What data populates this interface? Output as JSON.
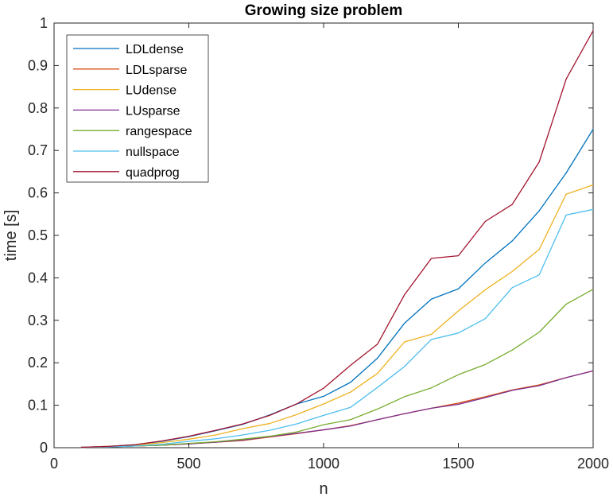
{
  "chart_data": {
    "type": "line",
    "title": "Growing size problem",
    "xlabel": "n",
    "ylabel": "time [s]",
    "xlim": [
      0,
      2000
    ],
    "ylim": [
      0,
      1
    ],
    "xticks": [
      0,
      500,
      1000,
      1500,
      2000
    ],
    "yticks": [
      0,
      0.1,
      0.2,
      0.3,
      0.4,
      0.5,
      0.6,
      0.7,
      0.8,
      0.9,
      1
    ],
    "xtick_labels": [
      "0",
      "500",
      "1000",
      "1500",
      "2000"
    ],
    "ytick_labels": [
      "0",
      "0.1",
      "0.2",
      "0.3",
      "0.4",
      "0.5",
      "0.6",
      "0.7",
      "0.8",
      "0.9",
      "1"
    ],
    "grid": false,
    "legend_position": "top-left",
    "x": [
      100,
      200,
      300,
      400,
      500,
      600,
      700,
      800,
      900,
      1000,
      1100,
      1200,
      1300,
      1400,
      1500,
      1600,
      1700,
      1800,
      1900,
      2000
    ],
    "series": [
      {
        "name": "LDLdense",
        "color": "#0072BD",
        "values": [
          0.001,
          0.003,
          0.007,
          0.015,
          0.026,
          0.04,
          0.055,
          0.077,
          0.103,
          0.121,
          0.154,
          0.211,
          0.293,
          0.35,
          0.374,
          0.435,
          0.487,
          0.558,
          0.647,
          0.75
        ]
      },
      {
        "name": "LDLsparse",
        "color": "#D95319",
        "values": [
          0.001,
          0.002,
          0.004,
          0.006,
          0.009,
          0.013,
          0.017,
          0.025,
          0.033,
          0.042,
          0.052,
          0.066,
          0.08,
          0.093,
          0.105,
          0.12,
          0.136,
          0.148,
          0.165,
          0.181
        ]
      },
      {
        "name": "LUdense",
        "color": "#EDB120",
        "values": [
          0.001,
          0.003,
          0.006,
          0.012,
          0.02,
          0.03,
          0.045,
          0.057,
          0.078,
          0.103,
          0.131,
          0.175,
          0.249,
          0.267,
          0.322,
          0.372,
          0.415,
          0.467,
          0.597,
          0.619
        ]
      },
      {
        "name": "LUsparse",
        "color": "#7E2F8E",
        "values": [
          0.001,
          0.002,
          0.004,
          0.006,
          0.009,
          0.013,
          0.018,
          0.026,
          0.034,
          0.042,
          0.051,
          0.066,
          0.08,
          0.093,
          0.102,
          0.118,
          0.135,
          0.146,
          0.165,
          0.181
        ]
      },
      {
        "name": "rangespace",
        "color": "#77AC30",
        "values": [
          0.001,
          0.002,
          0.004,
          0.006,
          0.01,
          0.014,
          0.02,
          0.027,
          0.037,
          0.054,
          0.066,
          0.091,
          0.12,
          0.141,
          0.172,
          0.196,
          0.23,
          0.272,
          0.338,
          0.373
        ]
      },
      {
        "name": "nullspace",
        "color": "#4DBEEE",
        "values": [
          0.001,
          0.002,
          0.004,
          0.008,
          0.015,
          0.021,
          0.03,
          0.041,
          0.056,
          0.076,
          0.095,
          0.142,
          0.191,
          0.255,
          0.27,
          0.304,
          0.377,
          0.407,
          0.548,
          0.561
        ]
      },
      {
        "name": "quadprog",
        "color": "#A2142F",
        "values": [
          0.001,
          0.003,
          0.007,
          0.016,
          0.027,
          0.041,
          0.056,
          0.076,
          0.103,
          0.14,
          0.194,
          0.244,
          0.36,
          0.446,
          0.452,
          0.533,
          0.573,
          0.673,
          0.868,
          0.982
        ]
      }
    ]
  }
}
